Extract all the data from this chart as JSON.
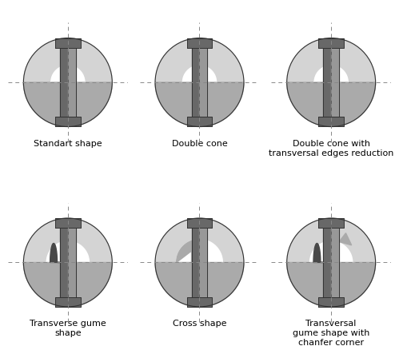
{
  "labels": [
    "Standart shape",
    "Double cone",
    "Double cone with\ntransversal edges reduction",
    "Transverse gume\nshape",
    "Cross shape",
    "Transversal\ngume shape with\nchanfer corner"
  ],
  "bg_color": "#ffffff",
  "c_circle_light": "#d4d4d4",
  "c_circle_dark": "#aaaaaa",
  "c_drill_mid": "#989898",
  "c_drill_dark": "#686868",
  "c_drill_darker": "#484848",
  "c_white": "#ffffff",
  "c_outline": "#333333",
  "c_dash": "#888888",
  "label_fontsize": 8.0
}
